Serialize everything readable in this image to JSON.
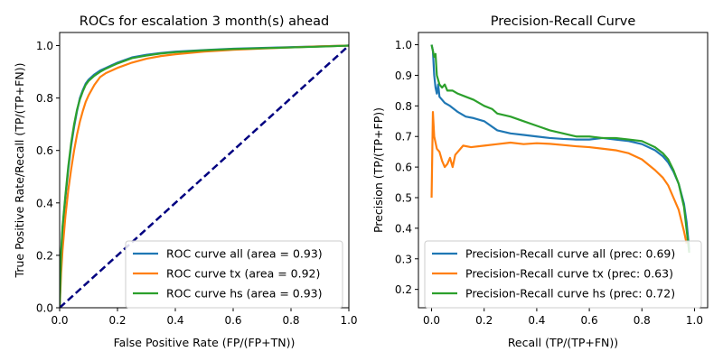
{
  "chart_data": [
    {
      "type": "line",
      "title": "ROCs for escalation 3 month(s) ahead",
      "xlabel": "False Positive Rate (FP/(FP+TN))",
      "ylabel": "True Positive Rate/Recall (TP/(TP+FN))",
      "xlim": [
        0,
        1
      ],
      "ylim": [
        0,
        1.05
      ],
      "xticks": [
        0,
        0.2,
        0.4,
        0.6,
        0.8,
        1
      ],
      "xticklabels": [
        "0.0",
        "0.2",
        "0.4",
        "0.6",
        "0.8",
        "1.0"
      ],
      "yticks": [
        0,
        0.2,
        0.4,
        0.6,
        0.8,
        1
      ],
      "yticklabels": [
        "0.0",
        "0.2",
        "0.4",
        "0.6",
        "0.8",
        "1.0"
      ],
      "grid": false,
      "legend_position": "lower-right",
      "series": [
        {
          "name": "ROC curve all (area = 0.93)",
          "color": "#1f77b4",
          "x": [
            0,
            0.005,
            0.01,
            0.02,
            0.03,
            0.04,
            0.05,
            0.06,
            0.07,
            0.08,
            0.09,
            0.1,
            0.12,
            0.14,
            0.16,
            0.18,
            0.2,
            0.25,
            0.3,
            0.35,
            0.4,
            0.5,
            0.6,
            0.7,
            0.8,
            0.9,
            1.0
          ],
          "y": [
            0,
            0.2,
            0.3,
            0.42,
            0.53,
            0.62,
            0.69,
            0.75,
            0.8,
            0.83,
            0.855,
            0.87,
            0.89,
            0.905,
            0.915,
            0.925,
            0.935,
            0.955,
            0.965,
            0.972,
            0.977,
            0.983,
            0.988,
            0.991,
            0.994,
            0.997,
            1.0
          ]
        },
        {
          "name": "ROC curve tx (area = 0.92)",
          "color": "#ff7f0e",
          "x": [
            0,
            0.005,
            0.01,
            0.02,
            0.03,
            0.04,
            0.05,
            0.06,
            0.07,
            0.08,
            0.09,
            0.1,
            0.12,
            0.14,
            0.16,
            0.18,
            0.2,
            0.25,
            0.3,
            0.35,
            0.4,
            0.5,
            0.6,
            0.7,
            0.8,
            0.9,
            1.0
          ],
          "y": [
            0,
            0.13,
            0.22,
            0.35,
            0.45,
            0.53,
            0.6,
            0.66,
            0.71,
            0.75,
            0.785,
            0.81,
            0.85,
            0.88,
            0.895,
            0.905,
            0.915,
            0.935,
            0.95,
            0.96,
            0.967,
            0.977,
            0.984,
            0.989,
            0.993,
            0.997,
            1.0
          ]
        },
        {
          "name": "ROC curve hs (area = 0.93)",
          "color": "#2ca02c",
          "x": [
            0,
            0.005,
            0.01,
            0.02,
            0.03,
            0.04,
            0.05,
            0.06,
            0.07,
            0.08,
            0.09,
            0.1,
            0.12,
            0.14,
            0.16,
            0.18,
            0.2,
            0.25,
            0.3,
            0.35,
            0.4,
            0.5,
            0.6,
            0.7,
            0.8,
            0.9,
            1.0
          ],
          "y": [
            0,
            0.21,
            0.31,
            0.43,
            0.54,
            0.63,
            0.7,
            0.755,
            0.795,
            0.825,
            0.85,
            0.865,
            0.885,
            0.9,
            0.912,
            0.922,
            0.932,
            0.952,
            0.962,
            0.97,
            0.975,
            0.982,
            0.987,
            0.99,
            0.993,
            0.996,
            1.0
          ]
        },
        {
          "name": "",
          "color": "#000080",
          "dashed": true,
          "x": [
            0,
            1
          ],
          "y": [
            0,
            1
          ]
        }
      ]
    },
    {
      "type": "line",
      "title": "Precision-Recall Curve",
      "xlabel": "Recall (TP/(TP+FN))",
      "ylabel": "Precision (TP/(TP+FP))",
      "xlim": [
        -0.05,
        1.05
      ],
      "ylim": [
        0.14,
        1.04
      ],
      "xticks": [
        0,
        0.2,
        0.4,
        0.6,
        0.8,
        1
      ],
      "xticklabels": [
        "0.0",
        "0.2",
        "0.4",
        "0.6",
        "0.8",
        "1.0"
      ],
      "yticks": [
        0.2,
        0.3,
        0.4,
        0.5,
        0.6,
        0.7,
        0.8,
        0.9,
        1
      ],
      "yticklabels": [
        "0.2",
        "0.3",
        "0.4",
        "0.5",
        "0.6",
        "0.7",
        "0.8",
        "0.9",
        "1.0"
      ],
      "grid": false,
      "legend_position": "lower-left",
      "series": [
        {
          "name": "Precision-Recall curve all (prec: 0.69)",
          "color": "#1f77b4",
          "x": [
            0,
            0.005,
            0.01,
            0.015,
            0.02,
            0.025,
            0.03,
            0.04,
            0.05,
            0.07,
            0.1,
            0.13,
            0.16,
            0.2,
            0.25,
            0.3,
            0.35,
            0.4,
            0.45,
            0.5,
            0.55,
            0.6,
            0.65,
            0.7,
            0.75,
            0.8,
            0.85,
            0.88,
            0.9,
            0.92,
            0.94,
            0.96,
            0.97,
            0.98
          ],
          "y": [
            1.0,
            0.98,
            0.9,
            0.86,
            0.84,
            0.87,
            0.83,
            0.82,
            0.81,
            0.8,
            0.78,
            0.765,
            0.76,
            0.75,
            0.72,
            0.71,
            0.705,
            0.7,
            0.695,
            0.692,
            0.69,
            0.69,
            0.695,
            0.69,
            0.685,
            0.675,
            0.655,
            0.635,
            0.615,
            0.585,
            0.545,
            0.48,
            0.42,
            0.33
          ]
        },
        {
          "name": "Precision-Recall curve tx (prec: 0.63)",
          "color": "#ff7f0e",
          "x": [
            0,
            0.005,
            0.01,
            0.015,
            0.02,
            0.03,
            0.04,
            0.05,
            0.06,
            0.07,
            0.08,
            0.09,
            0.1,
            0.12,
            0.15,
            0.2,
            0.25,
            0.3,
            0.35,
            0.4,
            0.45,
            0.5,
            0.55,
            0.6,
            0.65,
            0.7,
            0.75,
            0.8,
            0.85,
            0.88,
            0.9,
            0.92,
            0.94,
            0.96,
            0.97
          ],
          "y": [
            0.5,
            0.78,
            0.7,
            0.68,
            0.66,
            0.65,
            0.62,
            0.6,
            0.61,
            0.63,
            0.6,
            0.64,
            0.65,
            0.67,
            0.665,
            0.67,
            0.675,
            0.68,
            0.675,
            0.678,
            0.676,
            0.672,
            0.668,
            0.665,
            0.66,
            0.655,
            0.645,
            0.625,
            0.59,
            0.565,
            0.54,
            0.5,
            0.46,
            0.39,
            0.35
          ]
        },
        {
          "name": "Precision-Recall curve hs (prec: 0.72)",
          "color": "#2ca02c",
          "x": [
            0,
            0.005,
            0.01,
            0.015,
            0.02,
            0.03,
            0.04,
            0.05,
            0.06,
            0.08,
            0.1,
            0.13,
            0.16,
            0.2,
            0.23,
            0.25,
            0.3,
            0.35,
            0.4,
            0.45,
            0.5,
            0.55,
            0.6,
            0.65,
            0.7,
            0.75,
            0.8,
            0.85,
            0.88,
            0.9,
            0.92,
            0.94,
            0.96,
            0.98
          ],
          "y": [
            1.0,
            0.98,
            0.96,
            0.97,
            0.9,
            0.87,
            0.86,
            0.87,
            0.85,
            0.85,
            0.84,
            0.83,
            0.82,
            0.8,
            0.79,
            0.775,
            0.765,
            0.75,
            0.735,
            0.72,
            0.71,
            0.7,
            0.7,
            0.695,
            0.695,
            0.69,
            0.685,
            0.665,
            0.645,
            0.625,
            0.59,
            0.545,
            0.47,
            0.32
          ]
        }
      ]
    }
  ]
}
